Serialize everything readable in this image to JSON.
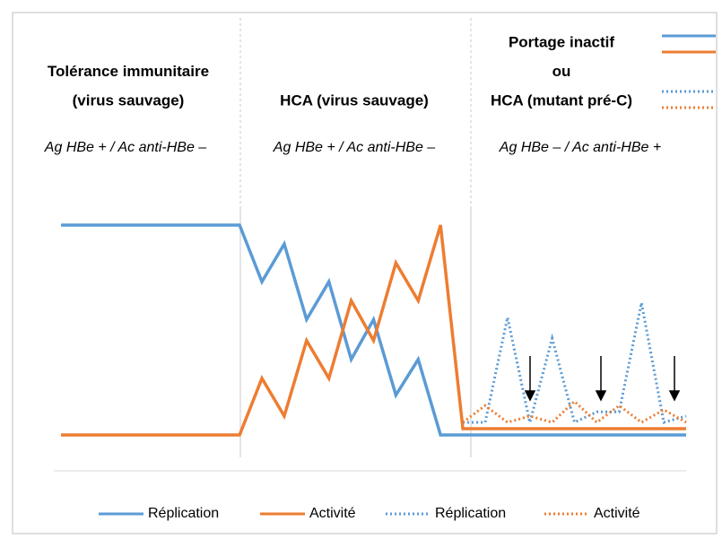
{
  "chart_data": {
    "type": "line",
    "phases": [
      {
        "title": [
          "Tolérance immunitaire",
          "(virus sauvage)"
        ],
        "subtitle": "Ag HBe + / Ac anti-HBe –"
      },
      {
        "title": [
          "HCA (virus sauvage)"
        ],
        "subtitle": "Ag HBe + / Ac anti-HBe –"
      },
      {
        "title": [
          "Portage inactif",
          "ou",
          "HCA (mutant pré-C)"
        ],
        "subtitle": "Ag HBe – / Ac anti-HBe +"
      }
    ],
    "xlim": [
      0,
      28
    ],
    "ylim": [
      0,
      100
    ],
    "series": [
      {
        "name": "Réplication",
        "color": "#5b9bd5",
        "dotted": false,
        "x": [
          0,
          8,
          9,
          10,
          11,
          12,
          13,
          14,
          15,
          16,
          17,
          28
        ],
        "values": [
          100,
          100,
          73,
          91,
          55,
          73,
          36,
          55,
          19,
          36,
          0,
          0
        ]
      },
      {
        "name": "Activité",
        "color": "#ed7d31",
        "dotted": false,
        "x": [
          0,
          8,
          9,
          10,
          11,
          12,
          13,
          14,
          15,
          16,
          17,
          18,
          28
        ],
        "values": [
          0,
          0,
          27,
          9,
          45,
          27,
          64,
          45,
          82,
          64,
          100,
          3,
          3
        ]
      },
      {
        "name": "Réplication",
        "color": "#5b9bd5",
        "dotted": true,
        "x": [
          18,
          19,
          20,
          21,
          22,
          23,
          24,
          25,
          26,
          27,
          28
        ],
        "values": [
          6,
          6,
          56,
          6,
          46,
          6,
          11,
          11,
          63,
          6,
          9
        ]
      },
      {
        "name": "Activité",
        "color": "#ed7d31",
        "dotted": true,
        "x": [
          18,
          19,
          20,
          21,
          22,
          23,
          24,
          25,
          26,
          27,
          28
        ],
        "values": [
          6,
          14,
          6,
          9,
          6,
          16,
          6,
          14,
          6,
          12,
          6
        ]
      }
    ]
  }
}
